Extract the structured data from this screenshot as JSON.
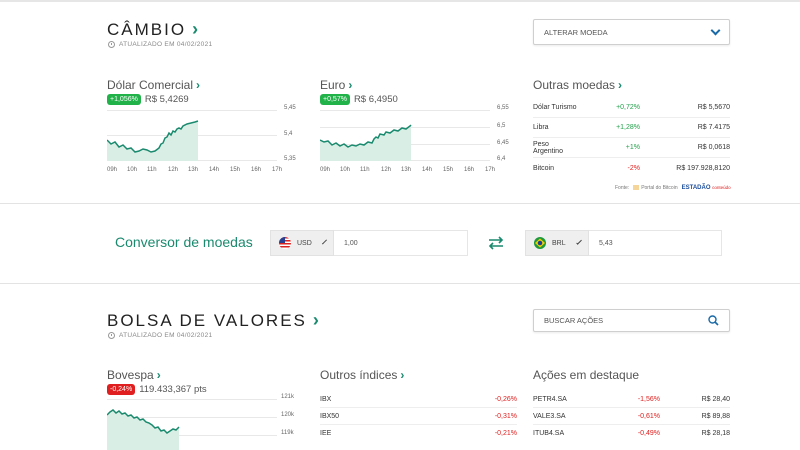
{
  "cambio": {
    "title": "CÂMBIO",
    "updated": "ATUALIZADO EM 04/02/2021",
    "dropdown_label": "ALTERAR MOEDA",
    "dolar": {
      "name": "Dólar Comercial",
      "change": "+1,056%",
      "price": "R$ 5,4269",
      "y_ticks": [
        "5,45",
        "5,4",
        "5,35"
      ],
      "x_ticks": [
        "09h",
        "10h",
        "11h",
        "12h",
        "13h",
        "14h",
        "15h",
        "16h",
        "17h"
      ]
    },
    "euro": {
      "name": "Euro",
      "change": "+0,57%",
      "price": "R$ 6,4950",
      "y_ticks": [
        "6,55",
        "6,5",
        "6,45",
        "6,4"
      ],
      "x_ticks": [
        "09h",
        "10h",
        "11h",
        "12h",
        "13h",
        "14h",
        "15h",
        "16h",
        "17h"
      ]
    },
    "outras": {
      "title": "Outras moedas",
      "rows": [
        {
          "name": "Dólar Turismo",
          "pct": "+0,72%",
          "value": "R$ 5,5670",
          "dir": "up"
        },
        {
          "name": "Libra",
          "pct": "+1,28%",
          "value": "R$ 7.4175",
          "dir": "up"
        },
        {
          "name": "Peso Argentino",
          "pct": "+1%",
          "value": "R$ 0,0618",
          "dir": "up"
        },
        {
          "name": "Bitcoin",
          "pct": "-2%",
          "value": "R$ 197.928,8120",
          "dir": "down"
        }
      ],
      "source_label": "Fonte:",
      "source_1": "Portal do Bitcoin",
      "source_2": "ESTADÃO",
      "source_2_sub": "conteúdo"
    }
  },
  "conversor": {
    "title": "Conversor de moedas",
    "from_currency": "USD",
    "from_value": "1,00",
    "to_currency": "BRL",
    "to_value": "5,43"
  },
  "bolsa": {
    "title": "BOLSA DE VALORES",
    "updated": "ATUALIZADO EM 04/02/2021",
    "search_placeholder": "BUSCAR AÇÕES",
    "bovespa": {
      "name": "Bovespa",
      "change": "-0,24%",
      "points": "119.433,367 pts",
      "y_ticks": [
        "121k",
        "120k",
        "119k"
      ]
    },
    "outros_indices": {
      "title": "Outros índices",
      "rows": [
        {
          "name": "IBX",
          "pct": "-0,26%"
        },
        {
          "name": "IBX50",
          "pct": "-0,31%"
        },
        {
          "name": "IEE",
          "pct": "-0,21%"
        }
      ]
    },
    "acoes": {
      "title": "Ações em destaque",
      "rows": [
        {
          "name": "PETR4.SA",
          "pct": "-1,56%",
          "value": "R$ 28,40"
        },
        {
          "name": "VALE3.SA",
          "pct": "-0,61%",
          "value": "R$ 89,88"
        },
        {
          "name": "ITUB4.SA",
          "pct": "-0,49%",
          "value": "R$ 28,18"
        }
      ]
    }
  },
  "colors": {
    "accent": "#1a8a6e",
    "chart_line": "#1a8a6e",
    "chart_fill": "#d9efe5",
    "up": "#21b24a",
    "down": "#e02020"
  },
  "icons": [
    "clock-icon",
    "chevron-right-icon",
    "chevron-down-icon",
    "swap-arrows-icon",
    "search-icon",
    "us-flag-icon",
    "br-flag-icon"
  ]
}
